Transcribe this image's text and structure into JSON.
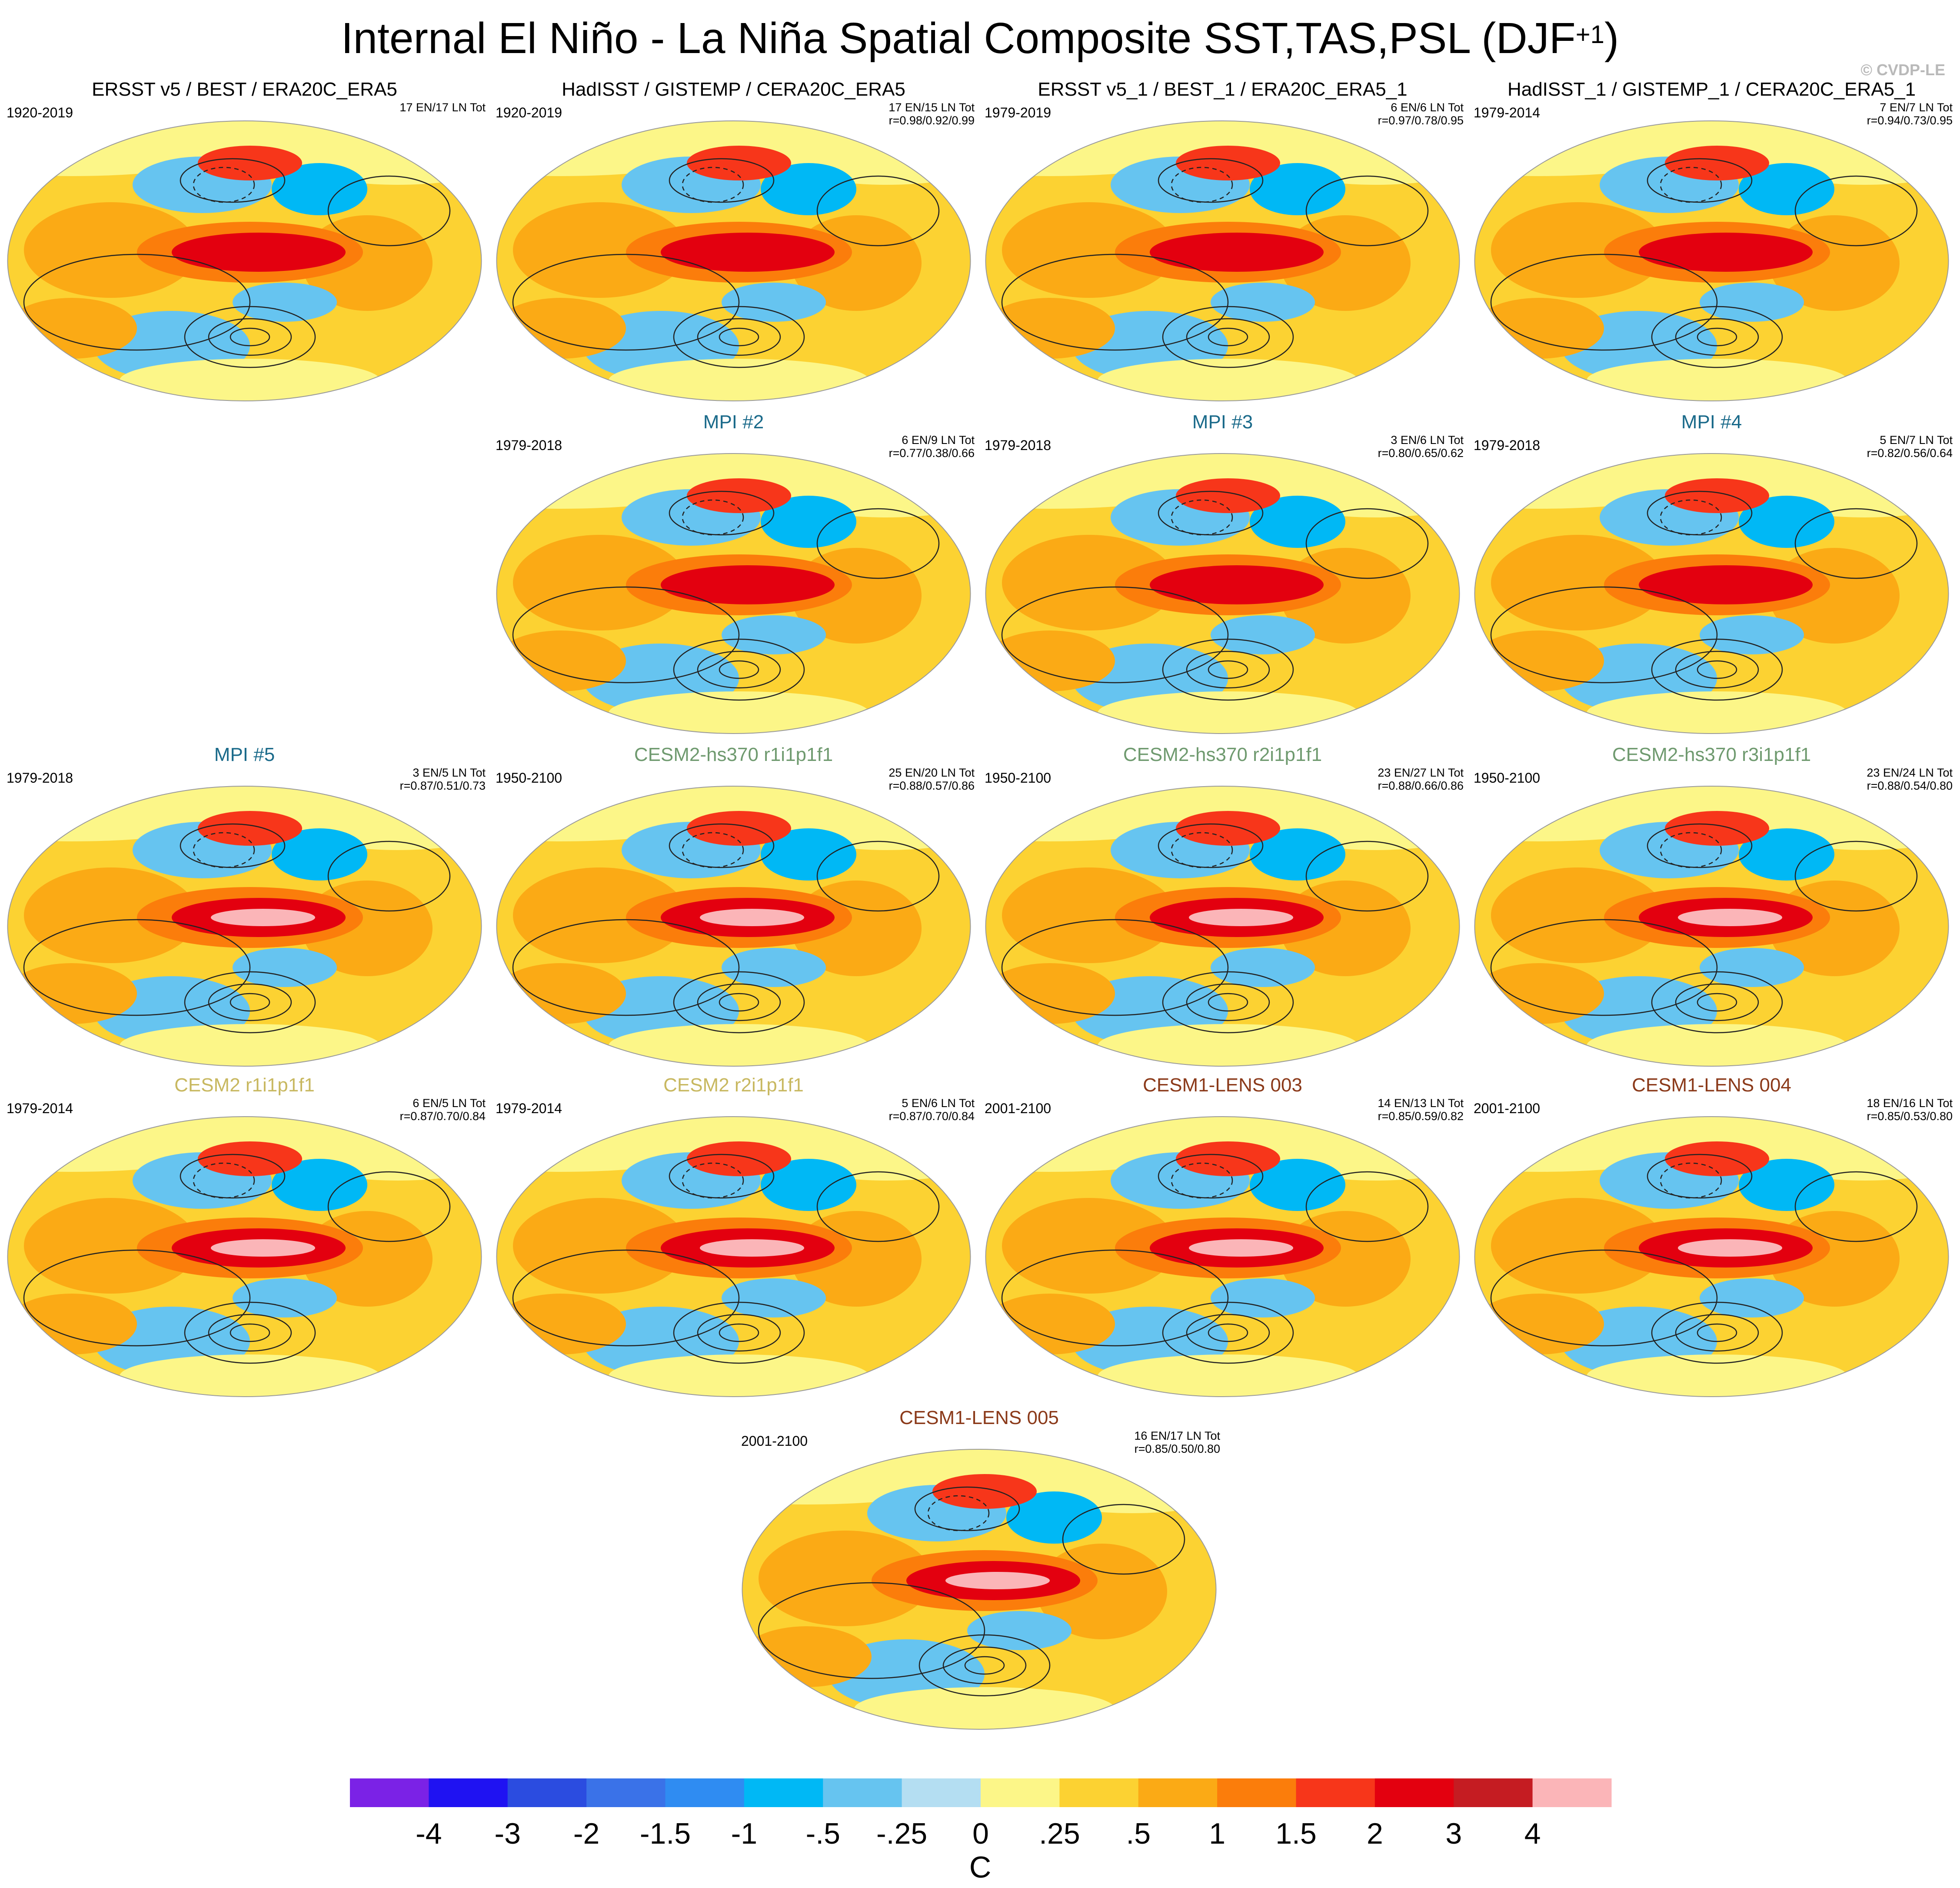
{
  "title_main": "Internal El Niño - La Niña Spatial Composite SST,TAS,PSL (DJF",
  "title_sup": "+1",
  "title_close": ")",
  "copyright": "© CVDP-LE",
  "chart_data": {
    "type": "heatmap",
    "panels": [
      {
        "title": "ERSST v5 / BEST / ERA20C_ERA5",
        "title_color": "#000000",
        "period": "1920-2019",
        "counts": "17 EN/17 LN Tot",
        "corr": ""
      },
      {
        "title": "HadISST / GISTEMP / CERA20C_ERA5",
        "title_color": "#000000",
        "period": "1920-2019",
        "counts": "17 EN/15 LN Tot",
        "corr": "r=0.98/0.92/0.99"
      },
      {
        "title": "ERSST v5_1 / BEST_1 / ERA20C_ERA5_1",
        "title_color": "#000000",
        "period": "1979-2019",
        "counts": "6 EN/6 LN Tot",
        "corr": "r=0.97/0.78/0.95"
      },
      {
        "title": "HadISST_1 / GISTEMP_1 / CERA20C_ERA5_1",
        "title_color": "#000000",
        "period": "1979-2014",
        "counts": "7 EN/7 LN Tot",
        "corr": "r=0.94/0.73/0.95"
      },
      {
        "title": "MPI #2",
        "title_color": "#1a6a8a",
        "period": "1979-2018",
        "counts": "6 EN/9 LN Tot",
        "corr": "r=0.77/0.38/0.66"
      },
      {
        "title": "MPI #3",
        "title_color": "#1a6a8a",
        "period": "1979-2018",
        "counts": "3 EN/6 LN Tot",
        "corr": "r=0.80/0.65/0.62"
      },
      {
        "title": "MPI #4",
        "title_color": "#1a6a8a",
        "period": "1979-2018",
        "counts": "5 EN/7 LN Tot",
        "corr": "r=0.82/0.56/0.64"
      },
      {
        "title": "MPI #5",
        "title_color": "#1a6a8a",
        "period": "1979-2018",
        "counts": "3 EN/5 LN Tot",
        "corr": "r=0.87/0.51/0.73"
      },
      {
        "title": "CESM2-hs370 r1i1p1f1",
        "title_color": "#6f9a6f",
        "period": "1950-2100",
        "counts": "25 EN/20 LN Tot",
        "corr": "r=0.88/0.57/0.86"
      },
      {
        "title": "CESM2-hs370 r2i1p1f1",
        "title_color": "#6f9a6f",
        "period": "1950-2100",
        "counts": "23 EN/27 LN Tot",
        "corr": "r=0.88/0.66/0.86"
      },
      {
        "title": "CESM2-hs370 r3i1p1f1",
        "title_color": "#6f9a6f",
        "period": "1950-2100",
        "counts": "23 EN/24 LN Tot",
        "corr": "r=0.88/0.54/0.80"
      },
      {
        "title": "CESM2 r1i1p1f1",
        "title_color": "#c8b860",
        "period": "1979-2014",
        "counts": "6 EN/5 LN Tot",
        "corr": "r=0.87/0.70/0.84"
      },
      {
        "title": "CESM2 r2i1p1f1",
        "title_color": "#c8b860",
        "period": "1979-2014",
        "counts": "5 EN/6 LN Tot",
        "corr": "r=0.87/0.70/0.84"
      },
      {
        "title": "CESM1-LENS 003",
        "title_color": "#8b3a1a",
        "period": "2001-2100",
        "counts": "14 EN/13 LN Tot",
        "corr": "r=0.85/0.59/0.82"
      },
      {
        "title": "CESM1-LENS 004",
        "title_color": "#8b3a1a",
        "period": "2001-2100",
        "counts": "18 EN/16 LN Tot",
        "corr": "r=0.85/0.53/0.80"
      },
      {
        "title": "CESM1-LENS 005",
        "title_color": "#8b3a1a",
        "period": "2001-2100",
        "counts": "16 EN/17 LN Tot",
        "corr": "r=0.85/0.50/0.80"
      }
    ],
    "colorbar": {
      "colors": [
        "#7b22e6",
        "#1f12f2",
        "#2b4ce0",
        "#3a72e8",
        "#2f8cf2",
        "#00b8f5",
        "#66c4f0",
        "#b4def2",
        "#fcf688",
        "#fcd232",
        "#fbaa15",
        "#fb7d0b",
        "#f7361a",
        "#e3000f",
        "#c51c22",
        "#fbb5b8"
      ],
      "labels": [
        "-4",
        "-3",
        "-2",
        "-1.5",
        "-1",
        "-.5",
        "-.25",
        "0",
        ".25",
        ".5",
        "1",
        "1.5",
        "2",
        "3",
        "4"
      ],
      "unit": "C"
    }
  }
}
